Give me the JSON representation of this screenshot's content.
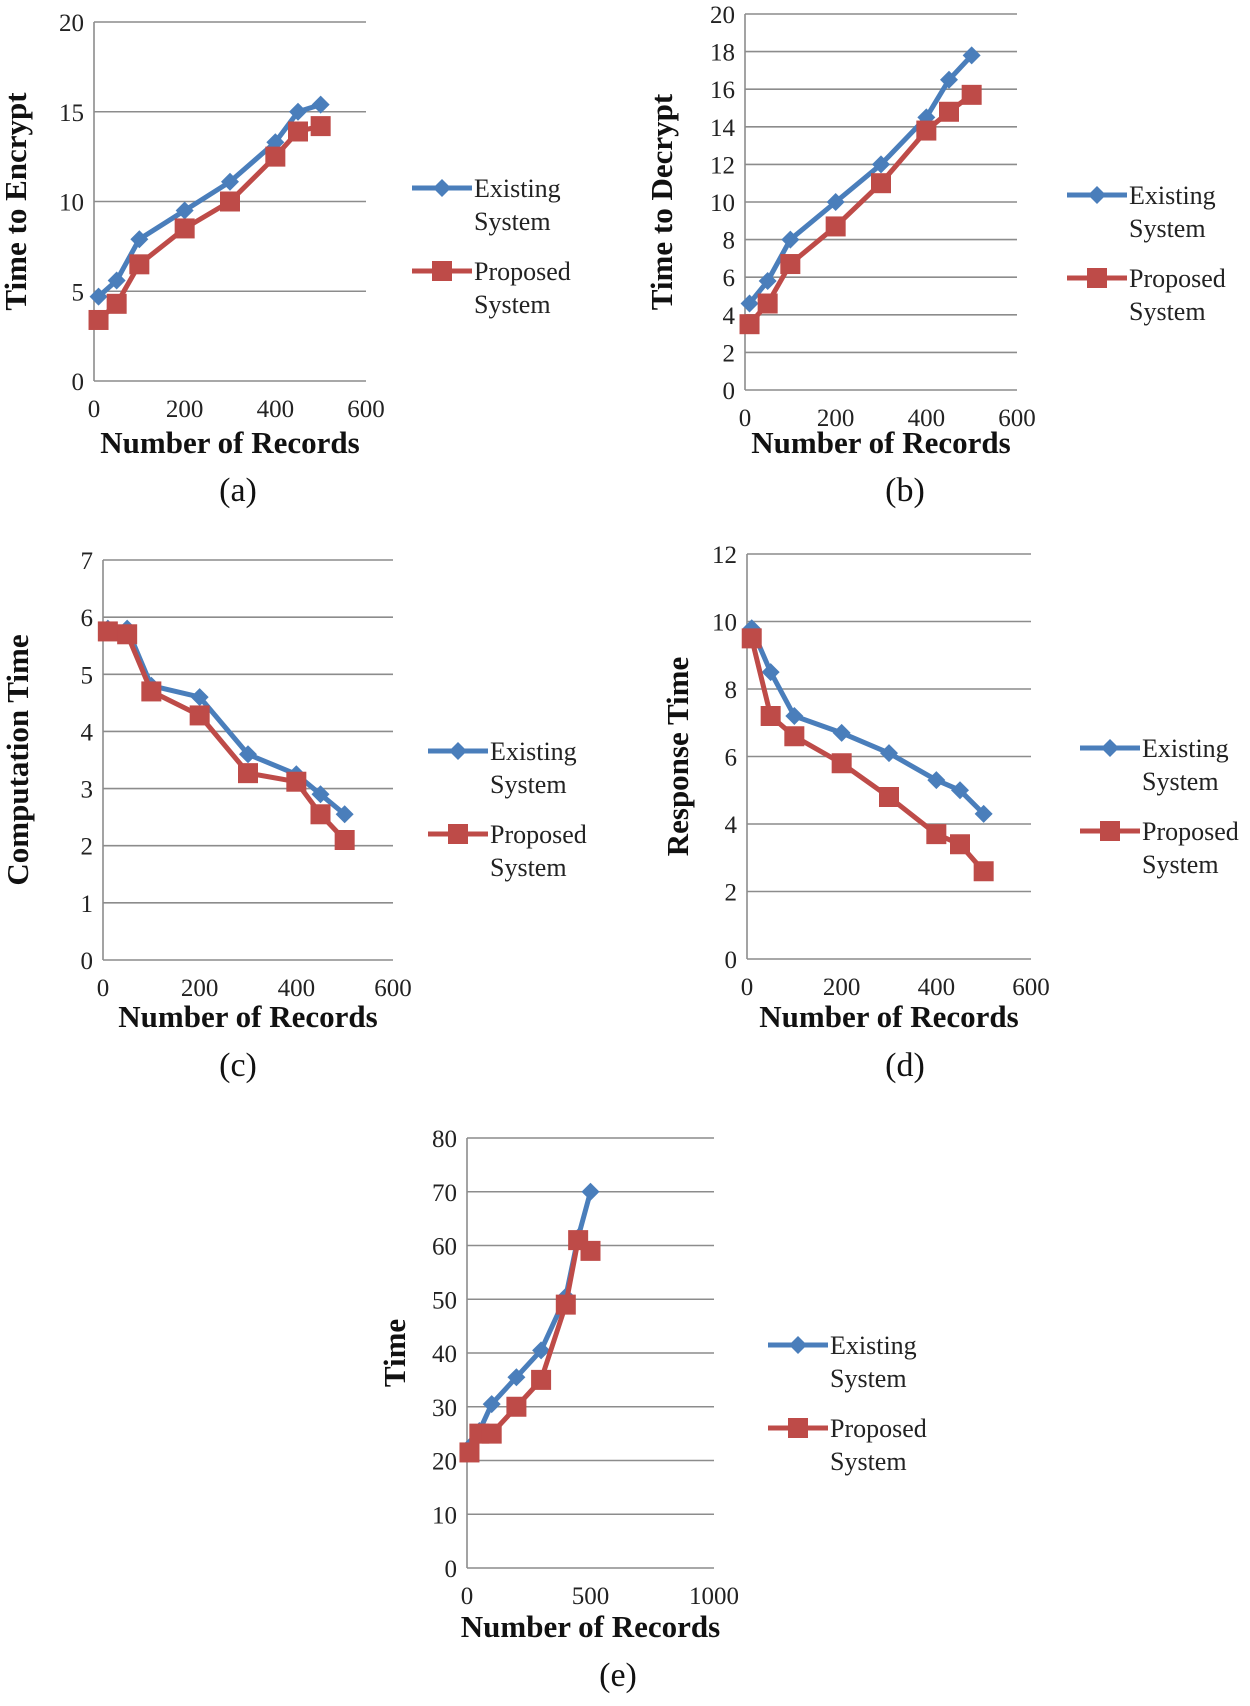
{
  "colors": {
    "existing": "#4a7ebb",
    "proposed": "#be4b48"
  },
  "chart_data": [
    {
      "type": "line",
      "caption": "(a)",
      "xlabel": "Number of Records",
      "ylabel": "Time to Encrypt",
      "xlim": [
        0,
        600
      ],
      "ylim": [
        0,
        20
      ],
      "xticks": [
        "0",
        "200",
        "400",
        "600"
      ],
      "yticks": [
        "0",
        "5",
        "10",
        "15",
        "20"
      ],
      "legend": "right",
      "series": [
        {
          "name": "Existing System",
          "marker": "diamond",
          "x": [
            10,
            50,
            100,
            200,
            300,
            400,
            450,
            500
          ],
          "y": [
            4.7,
            5.6,
            7.9,
            9.5,
            11.1,
            13.3,
            15.0,
            15.4
          ]
        },
        {
          "name": "Proposed System",
          "marker": "square",
          "x": [
            10,
            50,
            100,
            200,
            300,
            400,
            450,
            500
          ],
          "y": [
            3.4,
            4.3,
            6.5,
            8.5,
            10.0,
            12.5,
            13.9,
            14.2
          ]
        }
      ]
    },
    {
      "type": "line",
      "caption": "(b)",
      "xlabel": "Number of Records",
      "ylabel": "Time to Decrypt",
      "xlim": [
        0,
        600
      ],
      "ylim": [
        0,
        20
      ],
      "xticks": [
        "0",
        "200",
        "400",
        "600"
      ],
      "yticks": [
        "0",
        "2",
        "4",
        "6",
        "8",
        "10",
        "12",
        "14",
        "16",
        "18",
        "20"
      ],
      "legend": "right",
      "series": [
        {
          "name": "Existing System",
          "marker": "diamond",
          "x": [
            10,
            50,
            100,
            200,
            300,
            400,
            450,
            500
          ],
          "y": [
            4.6,
            5.8,
            8.0,
            10.0,
            12.0,
            14.5,
            16.5,
            17.8
          ]
        },
        {
          "name": "Proposed System",
          "marker": "square",
          "x": [
            10,
            50,
            100,
            200,
            300,
            400,
            450,
            500
          ],
          "y": [
            3.5,
            4.6,
            6.7,
            8.7,
            11.0,
            13.8,
            14.8,
            15.7
          ]
        }
      ]
    },
    {
      "type": "line",
      "caption": "(c)",
      "xlabel": "Number of Records",
      "ylabel": "Computation Time",
      "xlim": [
        0,
        600
      ],
      "ylim": [
        0,
        7
      ],
      "xticks": [
        "0",
        "200",
        "400",
        "600"
      ],
      "yticks": [
        "0",
        "1",
        "2",
        "3",
        "4",
        "5",
        "6",
        "7"
      ],
      "legend": "right",
      "series": [
        {
          "name": "Existing System",
          "marker": "diamond",
          "x": [
            10,
            50,
            100,
            200,
            300,
            400,
            450,
            500
          ],
          "y": [
            5.8,
            5.8,
            4.8,
            4.6,
            3.6,
            3.25,
            2.9,
            2.55
          ]
        },
        {
          "name": "Proposed System",
          "marker": "square",
          "x": [
            10,
            50,
            100,
            200,
            300,
            400,
            450,
            500
          ],
          "y": [
            5.75,
            5.7,
            4.7,
            4.28,
            3.27,
            3.12,
            2.55,
            2.1
          ]
        }
      ]
    },
    {
      "type": "line",
      "caption": "(d)",
      "xlabel": "Number of Records",
      "ylabel": "Response Time",
      "xlim": [
        0,
        600
      ],
      "ylim": [
        0,
        12
      ],
      "xticks": [
        "0",
        "200",
        "400",
        "600"
      ],
      "yticks": [
        "0",
        "2",
        "4",
        "6",
        "8",
        "10",
        "12"
      ],
      "legend": "right",
      "series": [
        {
          "name": "Existing System",
          "marker": "diamond",
          "x": [
            10,
            50,
            100,
            200,
            300,
            400,
            450,
            500
          ],
          "y": [
            9.8,
            8.5,
            7.2,
            6.7,
            6.1,
            5.3,
            5.0,
            4.3
          ]
        },
        {
          "name": "Proposed System",
          "marker": "square",
          "x": [
            10,
            50,
            100,
            200,
            300,
            400,
            450,
            500
          ],
          "y": [
            9.5,
            7.2,
            6.6,
            5.8,
            4.8,
            3.7,
            3.4,
            2.6
          ]
        }
      ]
    },
    {
      "type": "line",
      "caption": "(e)",
      "xlabel": "Number of Records",
      "ylabel": "Time",
      "xlim": [
        0,
        1000
      ],
      "ylim": [
        0,
        80
      ],
      "xticks": [
        "0",
        "500",
        "1000"
      ],
      "yticks": [
        "0",
        "10",
        "20",
        "30",
        "40",
        "50",
        "60",
        "70",
        "80"
      ],
      "legend": "right",
      "series": [
        {
          "name": "Existing System",
          "marker": "diamond",
          "x": [
            10,
            50,
            100,
            200,
            300,
            400,
            450,
            500
          ],
          "y": [
            22.5,
            25.5,
            30.5,
            35.5,
            40.5,
            50.5,
            61.5,
            70.0
          ]
        },
        {
          "name": "Proposed System",
          "marker": "square",
          "x": [
            10,
            50,
            100,
            200,
            300,
            400,
            450,
            500
          ],
          "y": [
            21.5,
            25.0,
            25.0,
            30.0,
            35.0,
            49.0,
            61.0,
            59.0
          ]
        }
      ]
    }
  ]
}
